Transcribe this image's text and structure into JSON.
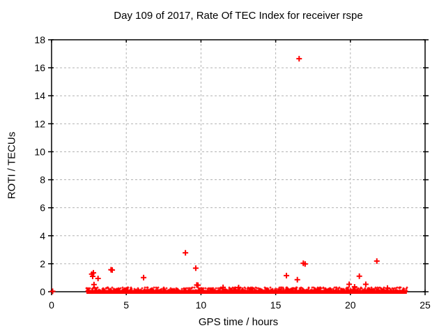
{
  "chart_data": {
    "type": "scatter",
    "title": "Day 109 of 2017, Rate Of TEC Index for receiver rspe",
    "xlabel": "GPS time / hours",
    "ylabel": "ROTI / TECUs",
    "xlim": [
      0,
      25
    ],
    "ylim": [
      0,
      18
    ],
    "xticks": [
      0,
      5,
      10,
      15,
      20,
      25
    ],
    "yticks": [
      0,
      2,
      4,
      6,
      8,
      10,
      12,
      14,
      16,
      18
    ],
    "grid": {
      "show": true,
      "style": "dashed",
      "color": "#b2b2b2"
    },
    "legend": "none",
    "marker": {
      "shape": "plus",
      "color": "#ff0000",
      "size": 8
    },
    "series_name": "ROTI",
    "points": [
      [
        0.07,
        0.03
      ],
      [
        2.69,
        1.26
      ],
      [
        2.8,
        1.35
      ],
      [
        2.75,
        1.1
      ],
      [
        3.11,
        0.95
      ],
      [
        2.84,
        0.51
      ],
      [
        3.98,
        1.57
      ],
      [
        4.06,
        1.55
      ],
      [
        6.16,
        1.01
      ],
      [
        8.96,
        2.78
      ],
      [
        9.65,
        1.68
      ],
      [
        9.72,
        0.48
      ],
      [
        9.8,
        0.47
      ],
      [
        11.48,
        0.31
      ],
      [
        12.52,
        0.3
      ],
      [
        15.72,
        1.15
      ],
      [
        16.45,
        0.86
      ],
      [
        16.57,
        16.65
      ],
      [
        16.85,
        2.03
      ],
      [
        16.97,
        1.98
      ],
      [
        19.92,
        0.53
      ],
      [
        20.28,
        0.35
      ],
      [
        20.6,
        1.11
      ],
      [
        21.03,
        0.53
      ],
      [
        21.77,
        2.19
      ],
      [
        22.48,
        0.26
      ]
    ],
    "baseline_band": {
      "x_start": 2.33,
      "x_end": 23.78,
      "y_solid_max": 0.13,
      "y_fuzz_max": 0.32,
      "note": "dense quasi-continuous band of ROTI values near zero TECUs"
    }
  }
}
